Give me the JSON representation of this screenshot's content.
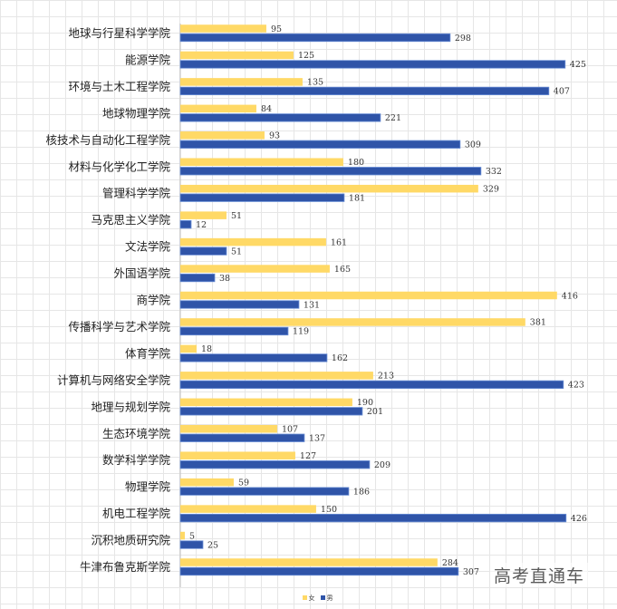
{
  "chart_data": {
    "type": "bar",
    "orientation": "horizontal",
    "categories": [
      "地球与行星科学学院",
      "能源学院",
      "环境与土木工程学院",
      "地球物理学院",
      "核技术与自动化工程学院",
      "材料与化学化工学院",
      "管理科学学院",
      "马克思主义学院",
      "文法学院",
      "外国语学院",
      "商学院",
      "传播科学与艺术学院",
      "体育学院",
      "计算机与网络安全学院",
      "地理与规划学院",
      "生态环境学院",
      "数学科学学院",
      "物理学院",
      "机电工程学院",
      "沉积地质研究院",
      "牛津布鲁克斯学院"
    ],
    "series": [
      {
        "name": "女",
        "color": "#ffd966",
        "values": [
          95,
          125,
          135,
          84,
          93,
          180,
          329,
          51,
          161,
          165,
          416,
          381,
          18,
          213,
          190,
          107,
          127,
          59,
          150,
          5,
          284
        ]
      },
      {
        "name": "男",
        "color": "#2f54a8",
        "values": [
          298,
          425,
          407,
          221,
          309,
          332,
          181,
          12,
          51,
          38,
          131,
          119,
          162,
          423,
          201,
          137,
          209,
          186,
          426,
          25,
          307
        ]
      }
    ],
    "xlim": [
      0,
      430
    ],
    "grid": true,
    "legend": "bottom-center",
    "data_labels": true
  },
  "watermark": "高考直通车"
}
